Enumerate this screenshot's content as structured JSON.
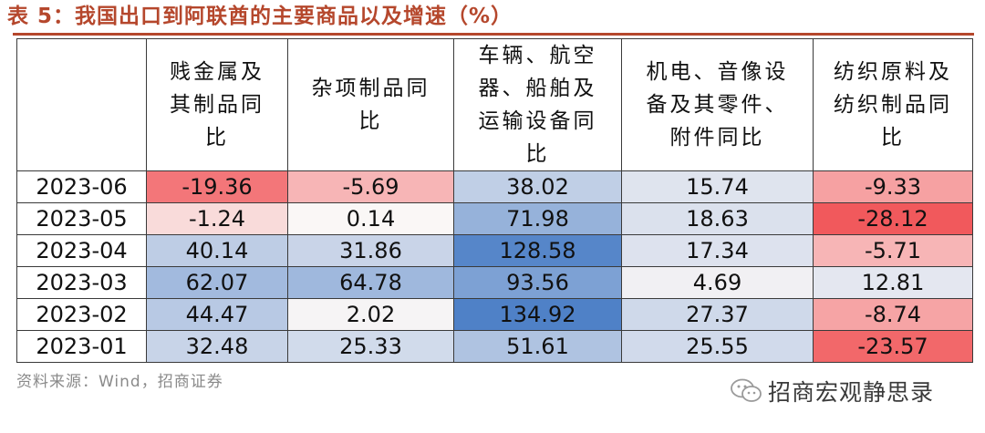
{
  "title": "表 5：我国出口到阿联酋的主要商品以及增速（%）",
  "table": {
    "corner": "",
    "headers": [
      "贱金属及其制品同比",
      "杂项制品同比",
      "车辆、航空器、船舶及运输设备同比",
      "机电、音像设备及其零件、附件同比",
      "纺织原料及纺织制品同比"
    ],
    "rows": [
      {
        "date": "2023-06",
        "values": [
          "-19.36",
          "-5.69",
          "38.02",
          "15.74",
          "-9.33"
        ]
      },
      {
        "date": "2023-05",
        "values": [
          "-1.24",
          "0.14",
          "71.98",
          "18.63",
          "-28.12"
        ]
      },
      {
        "date": "2023-04",
        "values": [
          "40.14",
          "31.86",
          "128.58",
          "17.34",
          "-5.71"
        ]
      },
      {
        "date": "2023-03",
        "values": [
          "62.07",
          "64.78",
          "93.56",
          "4.69",
          "12.81"
        ]
      },
      {
        "date": "2023-02",
        "values": [
          "44.47",
          "2.02",
          "134.92",
          "27.37",
          "-8.74"
        ]
      },
      {
        "date": "2023-01",
        "values": [
          "32.48",
          "25.33",
          "51.61",
          "25.55",
          "-23.57"
        ]
      }
    ]
  },
  "colors": {
    "title": "#b5472c",
    "positive_max": "#4f81c7",
    "negative_max": "#f1595c",
    "neutral": "#fbf7f6"
  },
  "source": "资料来源：Wind，招商证券",
  "watermark": {
    "icon": "wechat-icon",
    "text": "招商宏观静思录"
  }
}
